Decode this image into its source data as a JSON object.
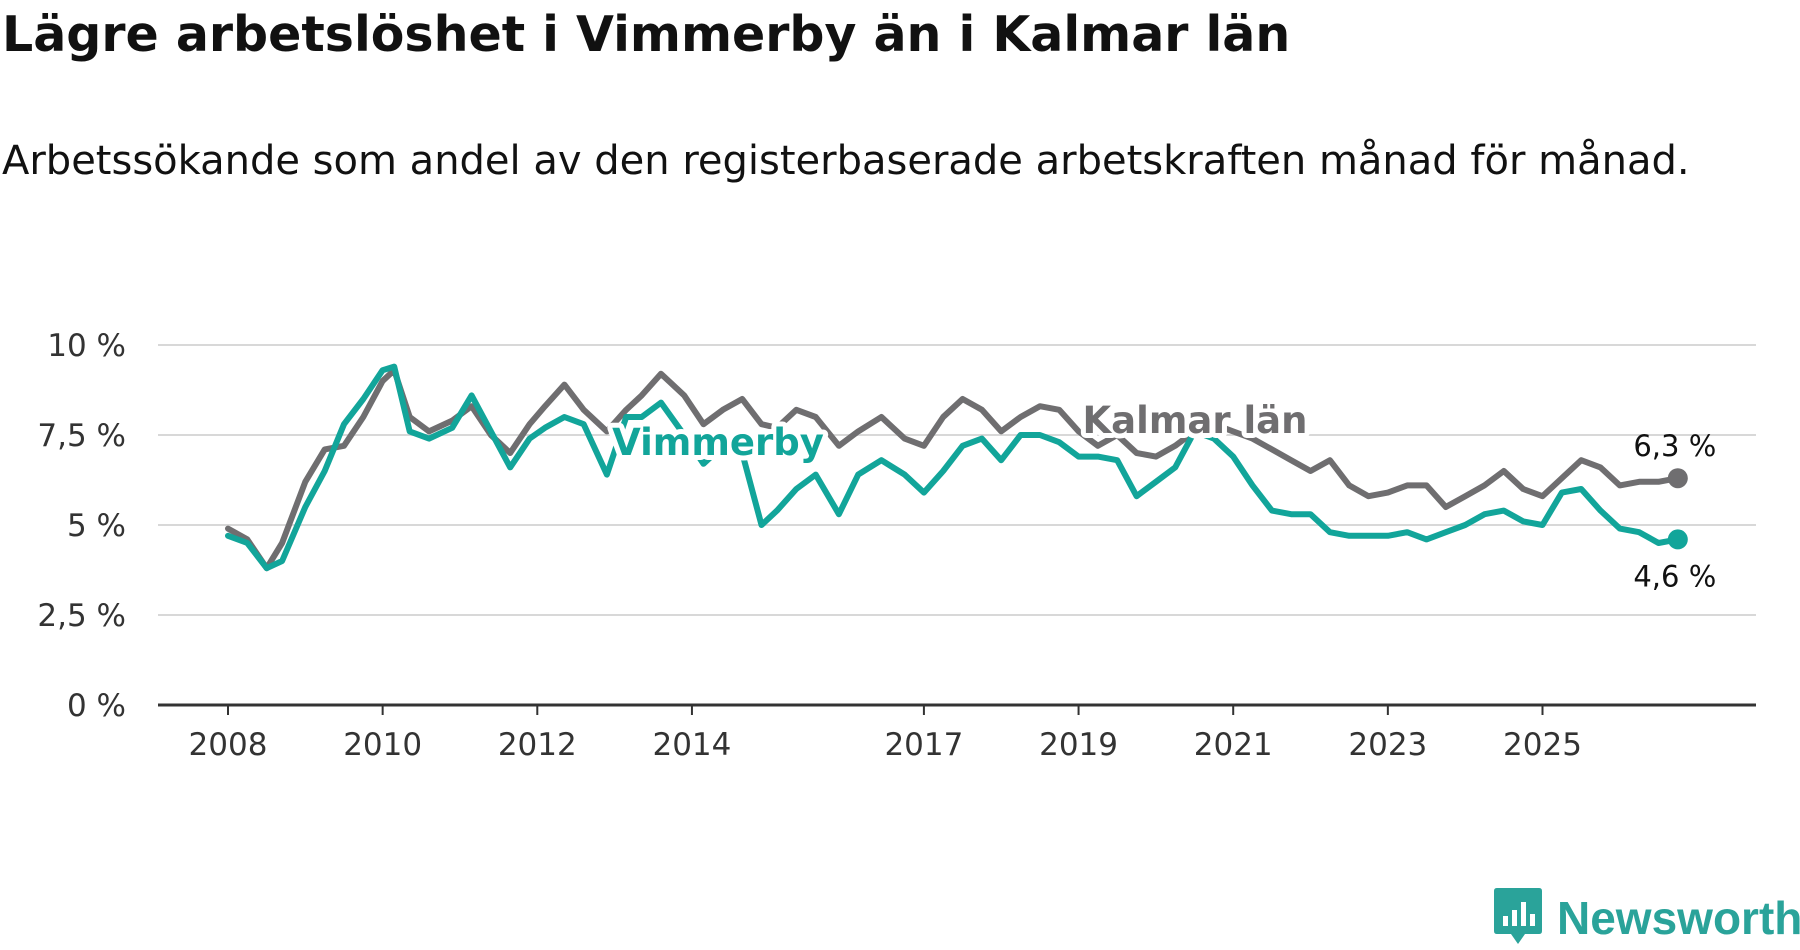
{
  "title": "Lägre arbetslöshet i Vimmerby än i Kalmar län",
  "subtitle": "Arbetssökande som andel av den registerbaserade arbetskraften månad för månad.",
  "brand": {
    "name": "Newsworthy",
    "icon": "newsworthy-logo-icon",
    "color": "#2aa39a"
  },
  "colors": {
    "vimmerby": "#12a59a",
    "kalmar": "#6f6e70",
    "grid": "#d8d8d8",
    "axis": "#333333"
  },
  "chart_data": {
    "type": "line",
    "title": "Lägre arbetslöshet i Vimmerby än i Kalmar län",
    "xlabel": "",
    "ylabel": "",
    "xlim": [
      2008.0,
      2026.83
    ],
    "ylim": [
      0,
      10
    ],
    "grid": true,
    "yticks": [
      0,
      2.5,
      5,
      7.5,
      10
    ],
    "ytick_labels": [
      "0 %",
      "2,5 %",
      "5 %",
      "7,5 %",
      "10 %"
    ],
    "xticks": [
      2008,
      2010,
      2012,
      2014,
      2017,
      2019,
      2021,
      2023,
      2025
    ],
    "xtick_labels": [
      "2008",
      "2010",
      "2012",
      "2014",
      "2017",
      "2019",
      "2021",
      "2023",
      "2025"
    ],
    "series": [
      {
        "name": "Kalmar län",
        "label": "Kalmar län",
        "end_label": "6,3 %",
        "x": [
          2008.0,
          2008.25,
          2008.5,
          2008.7,
          2009.0,
          2009.25,
          2009.5,
          2009.75,
          2010.0,
          2010.15,
          2010.35,
          2010.6,
          2010.9,
          2011.15,
          2011.4,
          2011.65,
          2011.9,
          2012.1,
          2012.35,
          2012.6,
          2012.9,
          2013.15,
          2013.35,
          2013.6,
          2013.9,
          2014.15,
          2014.4,
          2014.65,
          2014.9,
          2015.1,
          2015.35,
          2015.6,
          2015.9,
          2016.15,
          2016.45,
          2016.75,
          2017.0,
          2017.25,
          2017.5,
          2017.75,
          2018.0,
          2018.25,
          2018.5,
          2018.75,
          2019.0,
          2019.25,
          2019.5,
          2019.75,
          2020.0,
          2020.25,
          2020.5,
          2020.75,
          2021.0,
          2021.25,
          2021.5,
          2021.75,
          2022.0,
          2022.25,
          2022.5,
          2022.75,
          2023.0,
          2023.25,
          2023.5,
          2023.75,
          2024.0,
          2024.25,
          2024.5,
          2024.75,
          2025.0,
          2025.25,
          2025.5,
          2025.75,
          2026.0,
          2026.25,
          2026.5,
          2026.75
        ],
        "values": [
          4.9,
          4.6,
          3.8,
          4.5,
          6.2,
          7.1,
          7.2,
          8.0,
          9.0,
          9.3,
          8.0,
          7.6,
          7.9,
          8.3,
          7.5,
          7.0,
          7.8,
          8.3,
          8.9,
          8.2,
          7.6,
          8.2,
          8.6,
          9.2,
          8.6,
          7.8,
          8.2,
          8.5,
          7.8,
          7.7,
          8.2,
          8.0,
          7.2,
          7.6,
          8.0,
          7.4,
          7.2,
          8.0,
          8.5,
          8.2,
          7.6,
          8.0,
          8.3,
          8.2,
          7.6,
          7.2,
          7.5,
          7.0,
          6.9,
          7.2,
          7.6,
          7.8,
          7.6,
          7.4,
          7.1,
          6.8,
          6.5,
          6.8,
          6.1,
          5.8,
          5.9,
          6.1,
          6.1,
          5.5,
          5.8,
          6.1,
          6.5,
          6.0,
          5.8,
          6.3,
          6.8,
          6.6,
          6.1,
          6.2,
          6.2,
          6.3
        ]
      },
      {
        "name": "Vimmerby",
        "label": "Vimmerby",
        "end_label": "4,6 %",
        "x": [
          2008.0,
          2008.25,
          2008.5,
          2008.7,
          2009.0,
          2009.25,
          2009.5,
          2009.75,
          2010.0,
          2010.15,
          2010.35,
          2010.6,
          2010.9,
          2011.15,
          2011.4,
          2011.65,
          2011.9,
          2012.1,
          2012.35,
          2012.6,
          2012.9,
          2013.15,
          2013.35,
          2013.6,
          2013.9,
          2014.15,
          2014.4,
          2014.65,
          2014.9,
          2015.1,
          2015.35,
          2015.6,
          2015.9,
          2016.15,
          2016.45,
          2016.75,
          2017.0,
          2017.25,
          2017.5,
          2017.75,
          2018.0,
          2018.25,
          2018.5,
          2018.75,
          2019.0,
          2019.25,
          2019.5,
          2019.75,
          2020.0,
          2020.25,
          2020.5,
          2020.75,
          2021.0,
          2021.25,
          2021.5,
          2021.75,
          2022.0,
          2022.25,
          2022.5,
          2022.75,
          2023.0,
          2023.25,
          2023.5,
          2023.75,
          2024.0,
          2024.25,
          2024.5,
          2024.75,
          2025.0,
          2025.25,
          2025.5,
          2025.75,
          2026.0,
          2026.25,
          2026.5,
          2026.75
        ],
        "values": [
          4.7,
          4.5,
          3.8,
          4.0,
          5.5,
          6.5,
          7.8,
          8.5,
          9.3,
          9.4,
          7.6,
          7.4,
          7.7,
          8.6,
          7.6,
          6.6,
          7.4,
          7.7,
          8.0,
          7.8,
          6.4,
          8.0,
          8.0,
          8.4,
          7.5,
          6.7,
          7.2,
          7.0,
          5.0,
          5.4,
          6.0,
          6.4,
          5.3,
          6.4,
          6.8,
          6.4,
          5.9,
          6.5,
          7.2,
          7.4,
          6.8,
          7.5,
          7.5,
          7.3,
          6.9,
          6.9,
          6.8,
          5.8,
          6.2,
          6.6,
          7.6,
          7.4,
          6.9,
          6.1,
          5.4,
          5.3,
          5.3,
          4.8,
          4.7,
          4.7,
          4.7,
          4.8,
          4.6,
          4.8,
          5.0,
          5.3,
          5.4,
          5.1,
          5.0,
          5.9,
          6.0,
          5.4,
          4.9,
          4.8,
          4.5,
          4.6
        ]
      }
    ]
  }
}
